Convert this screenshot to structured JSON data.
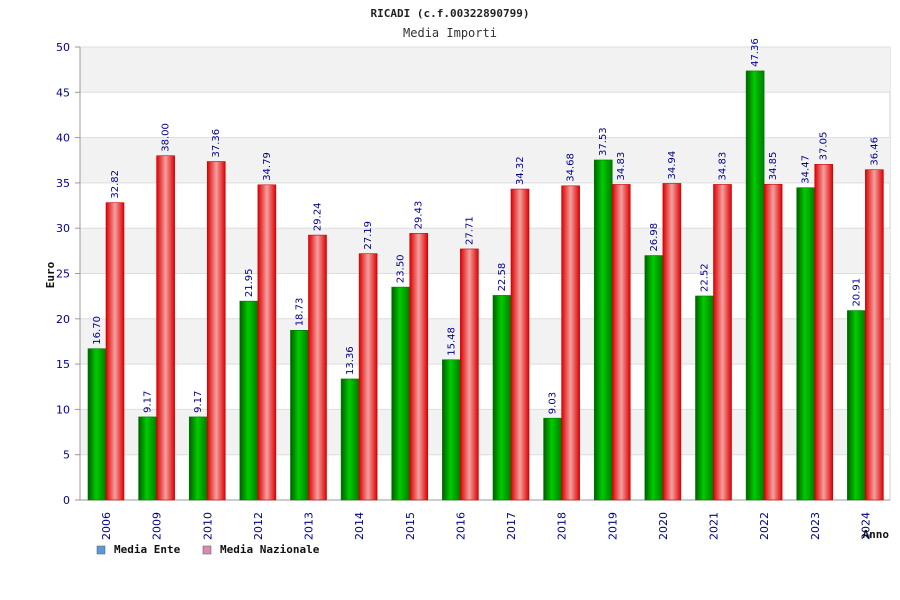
{
  "chart_data": {
    "type": "bar",
    "title": "RICADI (c.f.00322890799)",
    "subtitle": "Media Importi",
    "xlabel": "Anno",
    "ylabel": "Euro",
    "ylim": [
      0,
      50
    ],
    "yticks": [
      0,
      5,
      10,
      15,
      20,
      25,
      30,
      35,
      40,
      45,
      50
    ],
    "grid": true,
    "legend_position": "bottom-left",
    "categories": [
      "2006",
      "2009",
      "2010",
      "2012",
      "2013",
      "2014",
      "2015",
      "2016",
      "2017",
      "2018",
      "2019",
      "2020",
      "2021",
      "2022",
      "2023",
      "2024"
    ],
    "series": [
      {
        "name": "Media Ente",
        "color": "#00aa00",
        "legend_color": "#5b9bd5",
        "values": [
          16.7,
          9.17,
          9.17,
          21.95,
          18.73,
          13.36,
          23.5,
          15.48,
          22.58,
          9.03,
          37.53,
          26.98,
          22.52,
          47.36,
          34.47,
          20.91
        ],
        "labels": [
          "16.70",
          "9.17",
          "9.17",
          "21.95",
          "18.73",
          "13.36",
          "23.50",
          "15.48",
          "22.58",
          "9.03",
          "37.53",
          "26.98",
          "22.52",
          "47.36",
          "34.47",
          "20.91"
        ]
      },
      {
        "name": "Media Nazionale",
        "color": "#ee1111",
        "legend_color": "#d88ab0",
        "values": [
          32.82,
          38.0,
          37.36,
          34.79,
          29.24,
          27.19,
          29.43,
          27.71,
          34.32,
          34.68,
          34.83,
          34.94,
          34.83,
          34.85,
          37.05,
          36.46
        ],
        "labels": [
          "32.82",
          "38.00",
          "37.36",
          "34.79",
          "29.24",
          "27.19",
          "29.43",
          "27.71",
          "34.32",
          "34.68",
          "34.83",
          "34.94",
          "34.83",
          "34.85",
          "37.05",
          "36.46"
        ]
      }
    ]
  }
}
